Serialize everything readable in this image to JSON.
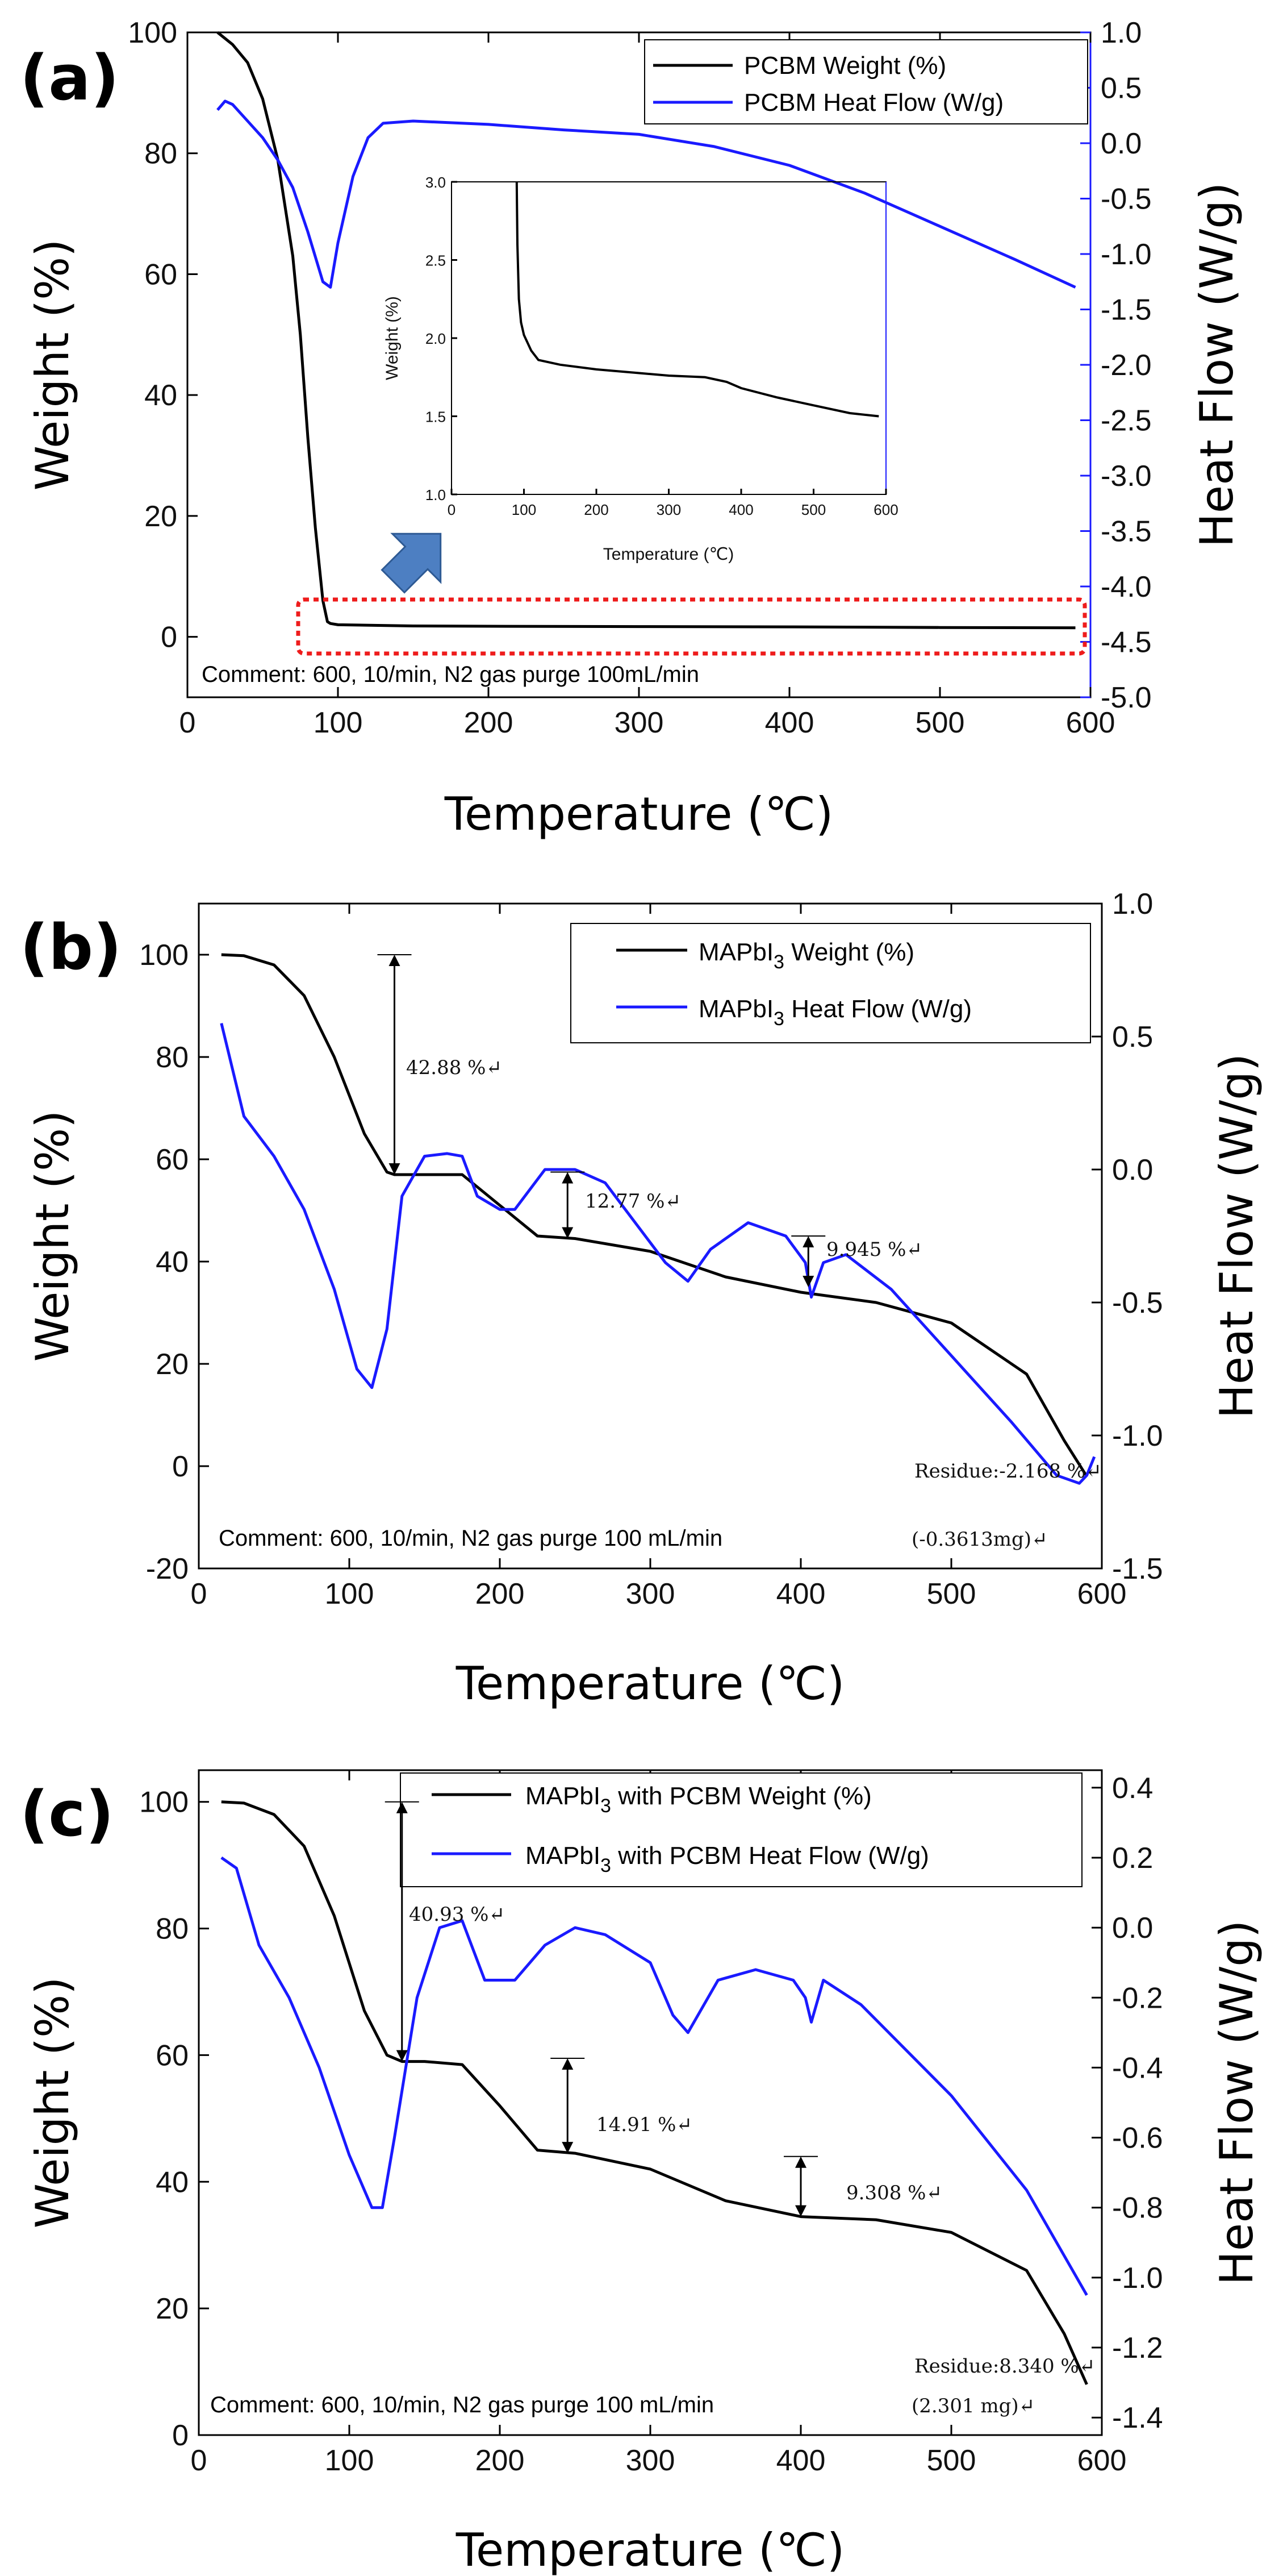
{
  "figure": {
    "panels": [
      {
        "label": "(a)"
      },
      {
        "label": "(b)"
      },
      {
        "label": "(c)"
      }
    ],
    "colors": {
      "weight": "#000000",
      "heat": "#1a1aff",
      "highlight": "#ee1c1c",
      "arrow_fill": "#4d7fc2"
    }
  },
  "chart_data": [
    {
      "type": "line",
      "panel": "(a)",
      "title": "",
      "xlabel": "Temperature (℃)",
      "ylabel": "Weight (%)",
      "ylabel_right": "Heat Flow (W/g)",
      "xlim": [
        0,
        600
      ],
      "ylim": [
        -10,
        100
      ],
      "ylim_right": [
        -5.0,
        1.0
      ],
      "xticks": [
        "0",
        "100",
        "200",
        "300",
        "400",
        "500",
        "600"
      ],
      "yticks": [
        "0",
        "20",
        "40",
        "60",
        "80",
        "100"
      ],
      "yticks_right": [
        "1.0",
        "0.5",
        "0.0",
        "-0.5",
        "-1.0",
        "-1.5",
        "-2.0",
        "-2.5",
        "-3.0",
        "-3.5",
        "-4.0",
        "-4.5",
        "-5.0"
      ],
      "legend": [
        "PCBM Weight (%)",
        "PCBM Heat Flow (W/g)"
      ],
      "legend_position": "top-right",
      "comment": "Comment: 600, 10/min, N2 gas purge 100mL/min",
      "series": [
        {
          "name": "PCBM Weight (%)",
          "axis": "left",
          "x": [
            20,
            30,
            40,
            50,
            60,
            70,
            75,
            80,
            85,
            90,
            93,
            95,
            100,
            150,
            200,
            300,
            400,
            500,
            590
          ],
          "y": [
            100,
            98,
            95,
            89,
            79,
            63,
            50,
            33,
            18,
            6,
            2.5,
            2.2,
            2.0,
            1.8,
            1.75,
            1.7,
            1.65,
            1.55,
            1.5
          ]
        },
        {
          "name": "PCBM Heat Flow (W/g)",
          "axis": "right",
          "x": [
            20,
            25,
            30,
            40,
            50,
            60,
            70,
            80,
            90,
            95,
            100,
            110,
            120,
            130,
            150,
            200,
            250,
            300,
            350,
            400,
            450,
            500,
            550,
            590
          ],
          "y": [
            0.3,
            0.38,
            0.35,
            0.2,
            0.05,
            -0.15,
            -0.4,
            -0.8,
            -1.25,
            -1.3,
            -0.9,
            -0.3,
            0.05,
            0.18,
            0.2,
            0.17,
            0.12,
            0.08,
            -0.03,
            -0.2,
            -0.45,
            -0.75,
            -1.05,
            -1.3
          ]
        }
      ],
      "inset": {
        "xlabel": "Temperature (℃)",
        "ylabel": "Weight (%)",
        "xlim": [
          0,
          600
        ],
        "ylim": [
          1.0,
          3.0
        ],
        "xticks": [
          "0",
          "100",
          "200",
          "300",
          "400",
          "500",
          "600"
        ],
        "yticks": [
          "1.0",
          "1.5",
          "2.0",
          "2.5",
          "3.0"
        ],
        "x": [
          90,
          91,
          93,
          96,
          100,
          110,
          120,
          150,
          200,
          250,
          300,
          350,
          380,
          400,
          450,
          500,
          550,
          590
        ],
        "y": [
          3.0,
          2.6,
          2.25,
          2.1,
          2.02,
          1.92,
          1.86,
          1.83,
          1.8,
          1.78,
          1.76,
          1.75,
          1.72,
          1.68,
          1.62,
          1.57,
          1.52,
          1.5
        ]
      }
    },
    {
      "type": "line",
      "panel": "(b)",
      "title": "",
      "xlabel": "Temperature (℃)",
      "ylabel": "Weight (%)",
      "ylabel_right": "Heat Flow (W/g)",
      "xlim": [
        0,
        600
      ],
      "ylim": [
        -20,
        110
      ],
      "ylim_right": [
        -1.5,
        1.0
      ],
      "xticks": [
        "0",
        "100",
        "200",
        "300",
        "400",
        "500",
        "600"
      ],
      "yticks": [
        "-20",
        "0",
        "20",
        "40",
        "60",
        "80",
        "100"
      ],
      "yticks_right": [
        "1.0",
        "0.5",
        "0.0",
        "-0.5",
        "-1.0",
        "-1.5"
      ],
      "legend": [
        {
          "base": "MAPbI",
          "sub": "3",
          "rest": " Weight (%)"
        },
        {
          "base": "MAPbI",
          "sub": "3",
          "rest": " Heat Flow (W/g)"
        }
      ],
      "legend_position": "top-right",
      "comment": "Comment: 600, 10/min, N2 gas purge 100 mL/min",
      "annotations": [
        "42.88 %↵",
        "12.77 %↵",
        "9.945 %↵",
        "Residue:-2.168 %↵",
        "(-0.3613mg)↵"
      ],
      "series": [
        {
          "name": "MAPbI3 Weight (%)",
          "axis": "left",
          "x": [
            15,
            30,
            50,
            70,
            90,
            110,
            125,
            130,
            150,
            175,
            200,
            225,
            250,
            300,
            350,
            400,
            450,
            500,
            550,
            575,
            590
          ],
          "y": [
            100,
            99.8,
            98,
            92,
            80,
            65,
            57.5,
            57,
            57,
            57,
            51,
            45,
            44.5,
            42,
            37,
            34,
            32,
            28,
            18,
            5,
            -2
          ]
        },
        {
          "name": "MAPbI3 Heat Flow (W/g)",
          "axis": "right",
          "x": [
            15,
            30,
            50,
            70,
            90,
            105,
            115,
            125,
            135,
            150,
            165,
            175,
            185,
            200,
            210,
            230,
            250,
            270,
            290,
            310,
            325,
            340,
            365,
            390,
            403,
            407,
            415,
            430,
            460,
            500,
            540,
            570,
            585,
            590,
            595
          ],
          "y": [
            0.55,
            0.2,
            0.05,
            -0.15,
            -0.45,
            -0.75,
            -0.82,
            -0.6,
            -0.1,
            0.05,
            0.06,
            0.05,
            -0.1,
            -0.15,
            -0.15,
            0.0,
            0.0,
            -0.05,
            -0.2,
            -0.35,
            -0.42,
            -0.3,
            -0.2,
            -0.25,
            -0.35,
            -0.48,
            -0.35,
            -0.32,
            -0.45,
            -0.7,
            -0.95,
            -1.15,
            -1.18,
            -1.15,
            -1.08
          ]
        }
      ]
    },
    {
      "type": "line",
      "panel": "(c)",
      "title": "",
      "xlabel": "Temperature (℃)",
      "ylabel": "Weight (%)",
      "ylabel_right": "Heat Flow (W/g)",
      "xlim": [
        0,
        600
      ],
      "ylim": [
        0,
        105
      ],
      "ylim_right": [
        -1.45,
        0.45
      ],
      "xticks": [
        "0",
        "100",
        "200",
        "300",
        "400",
        "500",
        "600"
      ],
      "yticks": [
        "0",
        "20",
        "40",
        "60",
        "80",
        "100"
      ],
      "yticks_right": [
        "0.4",
        "0.2",
        "0.0",
        "-0.2",
        "-0.4",
        "-0.6",
        "-0.8",
        "-1.0",
        "-1.2",
        "-1.4"
      ],
      "legend": [
        {
          "base": "MAPbI",
          "sub": "3",
          "rest": " with PCBM Weight (%)"
        },
        {
          "base": "MAPbI",
          "sub": "3",
          "rest": " with PCBM Heat Flow (W/g)"
        }
      ],
      "legend_position": "top-right",
      "comment": "Comment: 600, 10/min, N2 gas purge 100 mL/min",
      "annotations": [
        "40.93 %↵",
        "14.91 %↵",
        "9.308 %↵",
        "Residue:8.340 %↵",
        "(2.301 mg)↵"
      ],
      "series": [
        {
          "name": "MAPbI3 with PCBM Weight (%)",
          "axis": "left",
          "x": [
            15,
            30,
            50,
            70,
            90,
            110,
            125,
            135,
            150,
            175,
            200,
            225,
            250,
            300,
            350,
            400,
            450,
            500,
            550,
            575,
            590
          ],
          "y": [
            100,
            99.8,
            98,
            93,
            82,
            67,
            60,
            59,
            59,
            58.5,
            52,
            45,
            44.5,
            42,
            37,
            34.5,
            34,
            32,
            26,
            16,
            8
          ]
        },
        {
          "name": "MAPbI3 with PCBM Heat Flow (W/g)",
          "axis": "right",
          "x": [
            15,
            25,
            40,
            60,
            80,
            100,
            115,
            122,
            130,
            145,
            160,
            175,
            190,
            210,
            230,
            250,
            270,
            300,
            315,
            325,
            345,
            370,
            395,
            403,
            407,
            415,
            440,
            500,
            550,
            590
          ],
          "y": [
            0.2,
            0.17,
            -0.05,
            -0.2,
            -0.4,
            -0.65,
            -0.8,
            -0.8,
            -0.6,
            -0.2,
            0.0,
            0.02,
            -0.15,
            -0.15,
            -0.05,
            0.0,
            -0.02,
            -0.1,
            -0.25,
            -0.3,
            -0.15,
            -0.12,
            -0.15,
            -0.2,
            -0.27,
            -0.15,
            -0.22,
            -0.48,
            -0.75,
            -1.05
          ]
        }
      ]
    }
  ]
}
